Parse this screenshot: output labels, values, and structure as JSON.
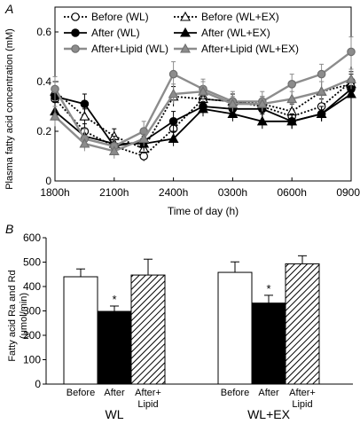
{
  "chart_data": [
    {
      "panel_label": "A",
      "type": "line",
      "xlabel": "Time of day (h)",
      "ylabel": "Plasma fatty acid concentration (mM)",
      "x_ticks": [
        "1800h",
        "2100h",
        "2400h",
        "0300h",
        "0600h",
        "0900h"
      ],
      "x": [
        0,
        1,
        2,
        3,
        4,
        5,
        6,
        7,
        8,
        9,
        10
      ],
      "ylim": [
        0,
        0.7
      ],
      "y_ticks": [
        "0",
        "0.2",
        "0.4",
        "0.6"
      ],
      "y_tick_values": [
        0,
        0.2,
        0.4,
        0.6
      ],
      "legend": "top, two columns",
      "series": [
        {
          "name": "Before (WL)",
          "style": "dotted",
          "marker": "circle-open",
          "color": "#000000",
          "values": [
            0.33,
            0.2,
            0.14,
            0.1,
            0.21,
            0.33,
            0.32,
            0.3,
            0.26,
            0.3,
            0.4
          ],
          "err": [
            0.04,
            0.03,
            0.03,
            0.02,
            0.03,
            0.04,
            0.03,
            0.03,
            0.03,
            0.03,
            0.04
          ]
        },
        {
          "name": "Before (WL+EX)",
          "style": "dotted",
          "marker": "triangle-open",
          "color": "#000000",
          "values": [
            0.36,
            0.26,
            0.18,
            0.13,
            0.34,
            0.33,
            0.32,
            0.31,
            0.28,
            0.36,
            0.39
          ],
          "err": [
            0.04,
            0.03,
            0.03,
            0.02,
            0.04,
            0.03,
            0.03,
            0.03,
            0.03,
            0.04,
            0.04
          ]
        },
        {
          "name": "After (WL)",
          "style": "solid",
          "marker": "circle-filled",
          "color": "#000000",
          "values": [
            0.34,
            0.31,
            0.14,
            0.16,
            0.24,
            0.3,
            0.29,
            0.29,
            0.24,
            0.27,
            0.37
          ],
          "err": [
            0.04,
            0.04,
            0.03,
            0.03,
            0.04,
            0.03,
            0.03,
            0.03,
            0.03,
            0.03,
            0.04
          ]
        },
        {
          "name": "After (WL+EX)",
          "style": "solid",
          "marker": "triangle-filled",
          "color": "#000000",
          "values": [
            0.28,
            0.18,
            0.15,
            0.15,
            0.17,
            0.29,
            0.27,
            0.24,
            0.24,
            0.27,
            0.35
          ],
          "err": [
            0.04,
            0.03,
            0.03,
            0.03,
            0.03,
            0.03,
            0.03,
            0.03,
            0.03,
            0.03,
            0.03
          ]
        },
        {
          "name": "After+Lipid (WL)",
          "style": "solid",
          "marker": "circle-filled",
          "color": "#8c8c8c",
          "values": [
            0.37,
            0.17,
            0.14,
            0.2,
            0.43,
            0.37,
            0.32,
            0.32,
            0.39,
            0.43,
            0.52
          ],
          "err": [
            0.05,
            0.04,
            0.03,
            0.04,
            0.05,
            0.04,
            0.04,
            0.04,
            0.04,
            0.04,
            0.06
          ]
        },
        {
          "name": "After+Lipid (WL+EX)",
          "style": "solid",
          "marker": "triangle-filled",
          "color": "#8c8c8c",
          "values": [
            0.26,
            0.15,
            0.12,
            0.17,
            0.35,
            0.36,
            0.31,
            0.31,
            0.33,
            0.36,
            0.41
          ],
          "err": [
            0.04,
            0.03,
            0.03,
            0.03,
            0.04,
            0.04,
            0.03,
            0.03,
            0.03,
            0.04,
            0.04
          ]
        }
      ]
    },
    {
      "panel_label": "B",
      "type": "bar",
      "ylabel_line1": "Fatty acid Ra and Rd",
      "ylabel_line2": "(μmol/min)",
      "ylim": [
        0,
        600
      ],
      "y_ticks": [
        "0",
        "100",
        "200",
        "300",
        "400",
        "500",
        "600"
      ],
      "y_tick_values": [
        0,
        100,
        200,
        300,
        400,
        500,
        600
      ],
      "groups": [
        {
          "name": "WL",
          "bars": [
            {
              "label_line1": "Before",
              "label_line2": "",
              "value": 440,
              "err": 32,
              "fill": "white",
              "sig": ""
            },
            {
              "label_line1": "After",
              "label_line2": "",
              "value": 298,
              "err": 22,
              "fill": "black",
              "sig": "*"
            },
            {
              "label_line1": "After+",
              "label_line2": "Lipid",
              "value": 447,
              "err": 65,
              "fill": "hatch",
              "sig": ""
            }
          ]
        },
        {
          "name": "WL+EX",
          "bars": [
            {
              "label_line1": "Before",
              "label_line2": "",
              "value": 458,
              "err": 43,
              "fill": "white",
              "sig": ""
            },
            {
              "label_line1": "After",
              "label_line2": "",
              "value": 332,
              "err": 32,
              "fill": "black",
              "sig": "*"
            },
            {
              "label_line1": "After+",
              "label_line2": "Lipid",
              "value": 493,
              "err": 33,
              "fill": "hatch",
              "sig": ""
            }
          ]
        }
      ]
    }
  ]
}
